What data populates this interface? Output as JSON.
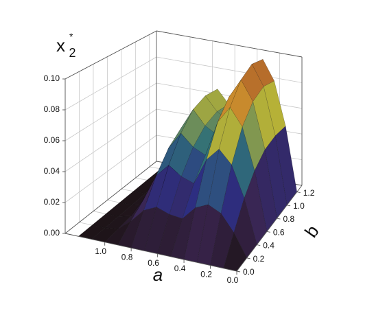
{
  "chart_data": {
    "type": "surface",
    "z_label": {
      "base": "x",
      "sup": "*",
      "sub": "2"
    },
    "a_label": "a",
    "b_label": "b",
    "a": [
      0,
      0.1,
      0.2,
      0.3,
      0.4,
      0.5,
      0.6,
      0.7,
      0.8,
      0.9,
      1.0,
      1.1,
      1.2
    ],
    "b": [
      0,
      0.2,
      0.4,
      0.6,
      0.8,
      1.0,
      1.2
    ],
    "z": [
      [
        0,
        0,
        0,
        0,
        0,
        0,
        0
      ],
      [
        0,
        0.015,
        0.03,
        0.041,
        0.048,
        0.05,
        0.049
      ],
      [
        0,
        0.026,
        0.051,
        0.07,
        0.081,
        0.085,
        0.082
      ],
      [
        0,
        0.03,
        0.06,
        0.082,
        0.095,
        0.1,
        0.097
      ],
      [
        0,
        0.026,
        0.051,
        0.07,
        0.081,
        0.085,
        0.082
      ],
      [
        0,
        0.017,
        0.033,
        0.045,
        0.052,
        0.055,
        0.053
      ],
      [
        0,
        0.018,
        0.036,
        0.049,
        0.057,
        0.06,
        0.058
      ],
      [
        0,
        0.021,
        0.042,
        0.057,
        0.067,
        0.07,
        0.068
      ],
      [
        0,
        0.017,
        0.033,
        0.045,
        0.052,
        0.055,
        0.053
      ],
      [
        0,
        0.008,
        0.015,
        0.021,
        0.024,
        0.025,
        0.024
      ],
      [
        0,
        0.001,
        0.002,
        0.002,
        0.003,
        0.003,
        0.003
      ],
      [
        0,
        0,
        0,
        0,
        0,
        0,
        0
      ],
      [
        0,
        0,
        0,
        0,
        0,
        0,
        0
      ]
    ],
    "alim": [
      0,
      1.3
    ],
    "blim": [
      0,
      1.3
    ],
    "zlim": [
      0,
      0.1
    ],
    "aticks": [
      {
        "value": 0,
        "label": "0.0"
      },
      {
        "value": 0.2,
        "label": "0.2"
      },
      {
        "value": 0.4,
        "label": "0.4"
      },
      {
        "value": 0.6,
        "label": "0.6"
      },
      {
        "value": 0.8,
        "label": "0.8"
      },
      {
        "value": 1.0,
        "label": "1.0"
      }
    ],
    "bticks": [
      {
        "value": 0,
        "label": "0.0"
      },
      {
        "value": 0.2,
        "label": "0.2"
      },
      {
        "value": 0.4,
        "label": "0.4"
      },
      {
        "value": 0.6,
        "label": "0.6"
      },
      {
        "value": 0.8,
        "label": "0.8"
      },
      {
        "value": 1.0,
        "label": "1.0"
      },
      {
        "value": 1.2,
        "label": "1.2"
      }
    ],
    "zticks": [
      {
        "value": 0,
        "label": "0.00"
      },
      {
        "value": 0.02,
        "label": "0.02"
      },
      {
        "value": 0.04,
        "label": "0.04"
      },
      {
        "value": 0.06,
        "label": "0.06"
      },
      {
        "value": 0.08,
        "label": "0.08"
      },
      {
        "value": 0.1,
        "label": "0.10"
      }
    ],
    "grid": true,
    "colormap": [
      "#1e1418",
      "#3a2550",
      "#2c2f86",
      "#2f6f78",
      "#b7b236",
      "#c9862c",
      "#a0502a"
    ]
  }
}
